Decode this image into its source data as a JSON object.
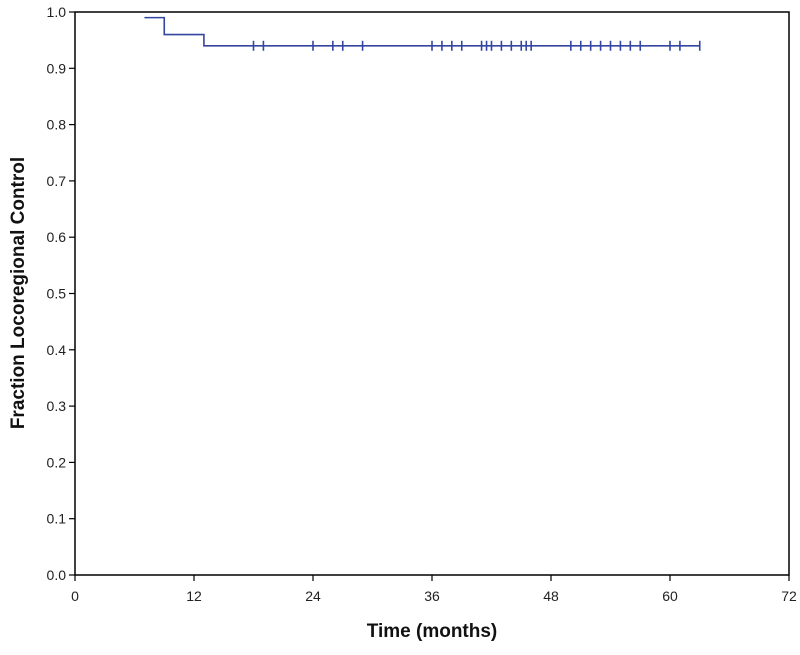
{
  "colors": {
    "series": "#3446a0",
    "axis": "#000000",
    "background": "#ffffff"
  },
  "chart_data": {
    "type": "line",
    "subtype": "kaplan-meier",
    "title": "",
    "xlabel": "Time (months)",
    "ylabel": "Fraction Locoregional Control",
    "xlim": [
      0,
      72
    ],
    "ylim": [
      0,
      1
    ],
    "xticks": [
      0,
      12,
      24,
      36,
      48,
      60,
      72
    ],
    "xtick_labels": [
      "0",
      "12",
      "24",
      "36",
      "48",
      "60",
      "72"
    ],
    "yticks": [
      0,
      0.1,
      0.2,
      0.3,
      0.4,
      0.5,
      0.6,
      0.7,
      0.8,
      0.9,
      1.0
    ],
    "ytick_labels": [
      "0.0",
      "0.1",
      "0.2",
      "0.3",
      "0.4",
      "0.5",
      "0.6",
      "0.7",
      "0.8",
      "0.9",
      "1.0"
    ],
    "grid": false,
    "legend": "none",
    "series": [
      {
        "steps": [
          {
            "x": 7,
            "y": 0.99
          },
          {
            "x": 9,
            "y": 0.96
          },
          {
            "x": 13,
            "y": 0.94
          },
          {
            "x": 63,
            "y": 0.94
          }
        ],
        "censored_times": [
          18,
          19,
          24,
          26,
          27,
          29,
          36,
          37,
          38,
          39,
          41,
          41.5,
          42,
          43,
          44,
          45,
          45.5,
          46,
          50,
          51,
          52,
          53,
          54,
          55,
          56,
          57,
          60,
          61,
          63
        ],
        "censored_y": 0.94
      }
    ]
  }
}
